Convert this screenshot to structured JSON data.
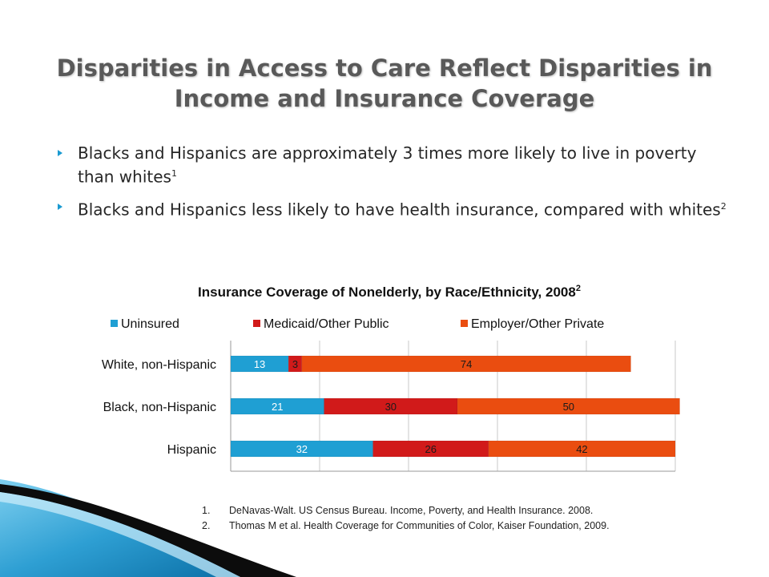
{
  "slide": {
    "title": "Disparities in Access to Care Reflect Disparities in Income and Insurance Coverage",
    "bullets": [
      {
        "text": "Blacks and Hispanics are approximately 3 times more likely to live in poverty than whites",
        "sup": "1"
      },
      {
        "text": "Blacks and Hispanics less likely to have health insurance, compared with whites",
        "sup": "2"
      }
    ],
    "references": [
      {
        "num": "1.",
        "text": "DeNavas-Walt. US Census Bureau. Income, Poverty, and Health Insurance. 2008."
      },
      {
        "num": "2.",
        "text": "Thomas M et al. Health Coverage for Communities of Color, Kaiser Foundation, 2009."
      }
    ]
  },
  "colors": {
    "uninsured": "#1f9fd3",
    "medicaid": "#d11a1a",
    "employer": "#ea4d10",
    "bullet": "#1a9ad1"
  },
  "chart_data": {
    "type": "bar",
    "orientation": "horizontal",
    "stacked": true,
    "title": "Insurance Coverage of Nonelderly, by Race/Ethnicity, 2008",
    "title_sup": "2",
    "categories": [
      "White, non-Hispanic",
      "Black, non-Hispanic",
      "Hispanic"
    ],
    "series": [
      {
        "name": "Uninsured",
        "values": [
          13,
          21,
          32
        ]
      },
      {
        "name": "Medicaid/Other Public",
        "values": [
          3,
          30,
          26
        ]
      },
      {
        "name": "Employer/Other Private",
        "values": [
          74,
          50,
          42
        ]
      }
    ],
    "xlim": [
      0,
      100
    ],
    "legend": "top",
    "grid": true
  }
}
